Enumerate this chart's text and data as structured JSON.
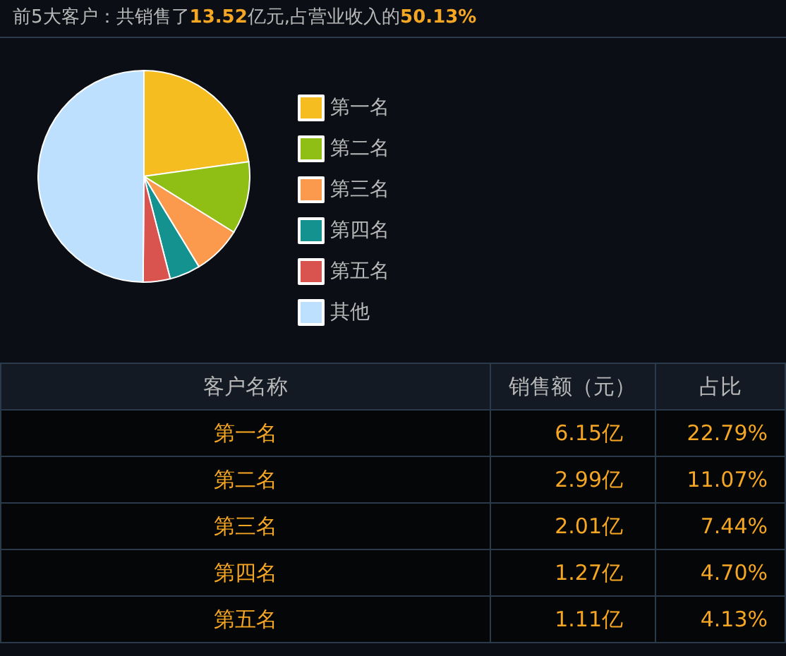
{
  "chart_data": {
    "type": "pie",
    "title": "前5大客户：共销售了13.52亿元,占营业收入的50.13%",
    "categories": [
      "第一名",
      "第二名",
      "第三名",
      "第四名",
      "第五名",
      "其他"
    ],
    "values": [
      22.79,
      11.07,
      7.44,
      4.7,
      4.13,
      49.87
    ],
    "colors": [
      "#f5bd1f",
      "#8fbe15",
      "#fb9a4c",
      "#13928f",
      "#d9534f",
      "#bde0ff"
    ],
    "annotations": [
      "客户名称",
      "销售额（元）",
      "占比",
      "6.15亿",
      "22.79%",
      "2.99亿",
      "11.07%",
      "2.01亿",
      "7.44%",
      "1.27亿",
      "4.70%",
      "1.11亿",
      "4.13%"
    ],
    "legend": "right"
  }
}
